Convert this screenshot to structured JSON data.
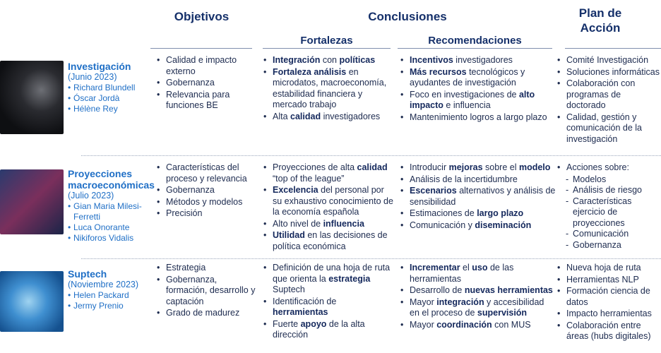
{
  "headers": {
    "objetivos": "Objetivos",
    "conclusiones": "Conclusiones",
    "fortalezas": "Fortalezas",
    "recomendaciones": "Recomendaciones",
    "plan": "Plan de Acción"
  },
  "rows": [
    {
      "title": "Investigación",
      "date": "(Junio 2023)",
      "people": [
        "Richard Blundell",
        "Óscar Jordà",
        "Hélène Rey"
      ],
      "objetivos": [
        "Calidad e impacto externo",
        "Gobernanza",
        "Relevancia para funciones BE"
      ],
      "fortalezas": [
        [
          {
            "text": "Integración",
            "bold": true
          },
          {
            "text": " con "
          },
          {
            "text": "políticas",
            "bold": true
          }
        ],
        [
          {
            "text": "Fortaleza análisis",
            "bold": true
          },
          {
            "text": " en microdatos, macroeconomía, estabilidad financiera y mercado trabajo"
          }
        ],
        [
          {
            "text": "Alta "
          },
          {
            "text": "calidad",
            "bold": true
          },
          {
            "text": " investigadores"
          }
        ]
      ],
      "recomendaciones": [
        [
          {
            "text": "Incentivos",
            "bold": true
          },
          {
            "text": " investigadores"
          }
        ],
        [
          {
            "text": "Más recursos",
            "bold": true
          },
          {
            "text": " tecnológicos y ayudantes de investigación"
          }
        ],
        [
          {
            "text": "Foco en investigaciones de "
          },
          {
            "text": "alto impacto",
            "bold": true
          },
          {
            "text": " e influencia"
          }
        ],
        [
          {
            "text": "Mantenimiento logros a largo plazo"
          }
        ]
      ],
      "plan": [
        [
          {
            "text": "Comité Investigación"
          }
        ],
        [
          {
            "text": "Soluciones informáticas"
          }
        ],
        [
          {
            "text": "Colaboración con programas de doctorado"
          }
        ],
        [
          {
            "text": "Calidad, gestión y comunicación de la investigación"
          }
        ]
      ]
    },
    {
      "title": "Proyecciones macroeconómicas",
      "date": "(Julio 2023)",
      "people": [
        "Gian Maria Milesi-Ferretti",
        "Luca Onorante",
        "Nikiforos Vidalis"
      ],
      "objetivos": [
        "Características del proceso y relevancia",
        "Gobernanza",
        "Métodos y modelos",
        "Precisión"
      ],
      "fortalezas": [
        [
          {
            "text": "Proyecciones de alta "
          },
          {
            "text": "calidad",
            "bold": true
          },
          {
            "text": " “top of the league”"
          }
        ],
        [
          {
            "text": "Excelencia",
            "bold": true
          },
          {
            "text": " del personal por su exhaustivo conocimiento de la economía española"
          }
        ],
        [
          {
            "text": "Alto nivel de "
          },
          {
            "text": "influencia",
            "bold": true
          }
        ],
        [
          {
            "text": "Utilidad",
            "bold": true
          },
          {
            "text": " en las decisiones de política económica"
          }
        ]
      ],
      "recomendaciones": [
        [
          {
            "text": "Introducir "
          },
          {
            "text": "mejoras",
            "bold": true
          },
          {
            "text": " sobre el "
          },
          {
            "text": "modelo",
            "bold": true
          }
        ],
        [
          {
            "text": "Análisis de la incertidumbre"
          }
        ],
        [
          {
            "text": "Escenarios",
            "bold": true
          },
          {
            "text": " alternativos y análisis de sensibilidad"
          }
        ],
        [
          {
            "text": "Estimaciones de "
          },
          {
            "text": "largo plazo",
            "bold": true
          }
        ],
        [
          {
            "text": "Comunicación y "
          },
          {
            "text": "diseminación",
            "bold": true
          }
        ]
      ],
      "plan": [
        [
          {
            "text": "Acciones sobre:"
          }
        ]
      ],
      "plan_sub": [
        "Modelos",
        "Análisis de riesgo",
        "Características ejercicio de proyecciones",
        "Comunicación",
        "Gobernanza"
      ]
    },
    {
      "title": "Suptech",
      "date": "(Noviembre 2023)",
      "people": [
        "Helen Packard",
        "Jermy Prenio"
      ],
      "objetivos": [
        "Estrategia",
        "Gobernanza, formación, desarrollo y captación",
        "Grado de madurez"
      ],
      "fortalezas": [
        [
          {
            "text": "Definición de una hoja de ruta que orienta la "
          },
          {
            "text": "estrategia",
            "bold": true
          },
          {
            "text": " Suptech"
          }
        ],
        [
          {
            "text": "Identificación de "
          },
          {
            "text": "herramientas",
            "bold": true
          }
        ],
        [
          {
            "text": "Fuerte "
          },
          {
            "text": "apoyo",
            "bold": true
          },
          {
            "text": " de la alta dirección"
          }
        ]
      ],
      "recomendaciones": [
        [
          {
            "text": "Incrementar",
            "bold": true
          },
          {
            "text": " el "
          },
          {
            "text": "uso",
            "bold": true
          },
          {
            "text": " de las herramientas"
          }
        ],
        [
          {
            "text": "Desarrollo de "
          },
          {
            "text": "nuevas herramientas",
            "bold": true
          }
        ],
        [
          {
            "text": "Mayor "
          },
          {
            "text": "integración",
            "bold": true
          },
          {
            "text": " y accesibilidad en el proceso de "
          },
          {
            "text": "supervisión",
            "bold": true
          }
        ],
        [
          {
            "text": "Mayor "
          },
          {
            "text": "coordinación",
            "bold": true
          },
          {
            "text": " con MUS"
          }
        ]
      ],
      "plan": [
        [
          {
            "text": "Nueva hoja de ruta"
          }
        ],
        [
          {
            "text": "Herramientas NLP"
          }
        ],
        [
          {
            "text": "Formación ciencia de datos"
          }
        ],
        [
          {
            "text": "Impacto herramientas"
          }
        ],
        [
          {
            "text": "Colaboración entre áreas (hubs digitales)"
          }
        ]
      ]
    }
  ]
}
